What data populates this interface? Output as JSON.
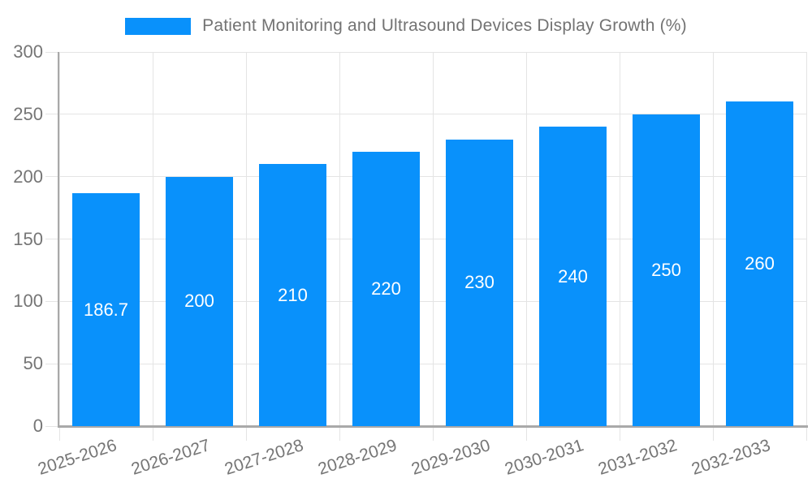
{
  "colors": {
    "bar": "#0991fb",
    "grid": "#e4e4e4",
    "axis": "#a9a9a9",
    "tick_text": "#757575",
    "title_text": "#737373",
    "bar_label_text": "#ffffff",
    "background": "#ffffff"
  },
  "chart_data": {
    "type": "bar",
    "title": "Patient Monitoring and Ultrasound Devices Display Growth (%)",
    "legend": [
      "Patient Monitoring and Ultrasound Devices Display Growth (%)"
    ],
    "legend_position": "top-center",
    "categories": [
      "2025-2026",
      "2026-2027",
      "2027-2028",
      "2028-2029",
      "2029-2030",
      "2030-2031",
      "2031-2032",
      "2032-2033"
    ],
    "series": [
      {
        "name": "Patient Monitoring and Ultrasound Devices Display Growth (%)",
        "values": [
          186.7,
          200,
          210,
          220,
          230,
          240,
          250,
          260
        ]
      }
    ],
    "bar_labels": [
      "186.7",
      "200",
      "210",
      "220",
      "230",
      "240",
      "250",
      "260"
    ],
    "xlabel": "",
    "ylabel": "",
    "ylim": [
      0,
      300
    ],
    "yticks": [
      0,
      50,
      100,
      150,
      200,
      250,
      300
    ],
    "grid": true,
    "x_tick_rotation_deg": -18
  }
}
